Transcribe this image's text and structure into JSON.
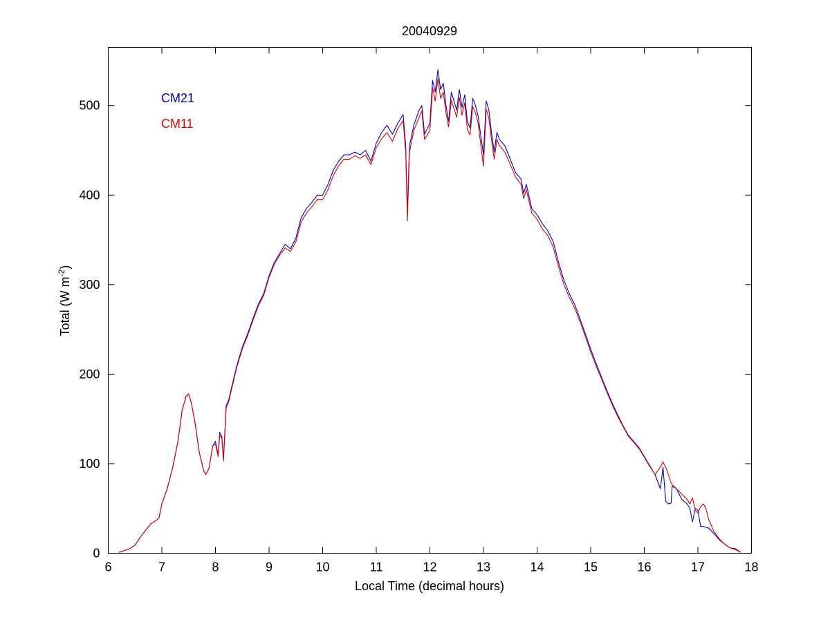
{
  "chart_data": {
    "type": "line",
    "title": "20040929",
    "xlabel": "Local Time (decimal hours)",
    "ylabel_main": "Total (W m",
    "ylabel_sup": "-2",
    "ylabel_close": ")",
    "xlim": [
      6,
      18
    ],
    "ylim": [
      0,
      565
    ],
    "xticks": [
      6,
      7,
      8,
      9,
      10,
      11,
      12,
      13,
      14,
      15,
      16,
      17,
      18
    ],
    "yticks": [
      0,
      100,
      200,
      300,
      400,
      500
    ],
    "grid": false,
    "legend_position": "top-left",
    "series": [
      {
        "name": "CM21",
        "color": "#0000bf",
        "points": [
          [
            6.2,
            1
          ],
          [
            6.3,
            3
          ],
          [
            6.4,
            5
          ],
          [
            6.5,
            9
          ],
          [
            6.6,
            18
          ],
          [
            6.7,
            26
          ],
          [
            6.8,
            33
          ],
          [
            6.9,
            37
          ],
          [
            6.95,
            40
          ],
          [
            7.0,
            55
          ],
          [
            7.1,
            72
          ],
          [
            7.2,
            95
          ],
          [
            7.3,
            125
          ],
          [
            7.38,
            160
          ],
          [
            7.45,
            175
          ],
          [
            7.5,
            178
          ],
          [
            7.55,
            168
          ],
          [
            7.62,
            145
          ],
          [
            7.7,
            112
          ],
          [
            7.78,
            92
          ],
          [
            7.82,
            88
          ],
          [
            7.88,
            95
          ],
          [
            7.95,
            120
          ],
          [
            8.0,
            125
          ],
          [
            8.05,
            110
          ],
          [
            8.08,
            135
          ],
          [
            8.12,
            130
          ],
          [
            8.15,
            105
          ],
          [
            8.2,
            165
          ],
          [
            8.25,
            172
          ],
          [
            8.3,
            185
          ],
          [
            8.4,
            210
          ],
          [
            8.5,
            230
          ],
          [
            8.6,
            245
          ],
          [
            8.7,
            262
          ],
          [
            8.8,
            278
          ],
          [
            8.9,
            290
          ],
          [
            9.0,
            310
          ],
          [
            9.1,
            325
          ],
          [
            9.2,
            335
          ],
          [
            9.3,
            345
          ],
          [
            9.4,
            340
          ],
          [
            9.5,
            352
          ],
          [
            9.6,
            375
          ],
          [
            9.7,
            385
          ],
          [
            9.8,
            392
          ],
          [
            9.9,
            400
          ],
          [
            10.0,
            400
          ],
          [
            10.1,
            412
          ],
          [
            10.2,
            428
          ],
          [
            10.3,
            438
          ],
          [
            10.4,
            445
          ],
          [
            10.5,
            445
          ],
          [
            10.6,
            448
          ],
          [
            10.7,
            445
          ],
          [
            10.8,
            450
          ],
          [
            10.9,
            438
          ],
          [
            11.0,
            458
          ],
          [
            11.1,
            470
          ],
          [
            11.2,
            478
          ],
          [
            11.3,
            468
          ],
          [
            11.4,
            480
          ],
          [
            11.5,
            490
          ],
          [
            11.55,
            455
          ],
          [
            11.58,
            380
          ],
          [
            11.62,
            455
          ],
          [
            11.7,
            478
          ],
          [
            11.8,
            495
          ],
          [
            11.85,
            500
          ],
          [
            11.9,
            468
          ],
          [
            12.0,
            480
          ],
          [
            12.05,
            528
          ],
          [
            12.1,
            515
          ],
          [
            12.15,
            540
          ],
          [
            12.2,
            518
          ],
          [
            12.25,
            525
          ],
          [
            12.3,
            500
          ],
          [
            12.35,
            482
          ],
          [
            12.4,
            515
          ],
          [
            12.5,
            495
          ],
          [
            12.55,
            518
          ],
          [
            12.6,
            498
          ],
          [
            12.65,
            512
          ],
          [
            12.7,
            482
          ],
          [
            12.75,
            475
          ],
          [
            12.8,
            508
          ],
          [
            12.85,
            500
          ],
          [
            12.9,
            488
          ],
          [
            13.0,
            445
          ],
          [
            13.05,
            505
          ],
          [
            13.1,
            495
          ],
          [
            13.15,
            470
          ],
          [
            13.2,
            448
          ],
          [
            13.25,
            470
          ],
          [
            13.3,
            462
          ],
          [
            13.4,
            455
          ],
          [
            13.5,
            440
          ],
          [
            13.6,
            425
          ],
          [
            13.7,
            418
          ],
          [
            13.75,
            402
          ],
          [
            13.8,
            412
          ],
          [
            13.9,
            385
          ],
          [
            14.0,
            378
          ],
          [
            14.1,
            368
          ],
          [
            14.2,
            360
          ],
          [
            14.3,
            348
          ],
          [
            14.4,
            325
          ],
          [
            14.5,
            305
          ],
          [
            14.6,
            290
          ],
          [
            14.7,
            278
          ],
          [
            14.8,
            262
          ],
          [
            14.9,
            245
          ],
          [
            15.0,
            228
          ],
          [
            15.1,
            212
          ],
          [
            15.2,
            197
          ],
          [
            15.3,
            182
          ],
          [
            15.4,
            168
          ],
          [
            15.5,
            155
          ],
          [
            15.6,
            143
          ],
          [
            15.7,
            132
          ],
          [
            15.8,
            125
          ],
          [
            15.9,
            118
          ],
          [
            16.0,
            108
          ],
          [
            16.1,
            98
          ],
          [
            16.2,
            88
          ],
          [
            16.3,
            72
          ],
          [
            16.35,
            96
          ],
          [
            16.4,
            58
          ],
          [
            16.45,
            55
          ],
          [
            16.5,
            56
          ],
          [
            16.52,
            75
          ],
          [
            16.6,
            72
          ],
          [
            16.7,
            60
          ],
          [
            16.8,
            55
          ],
          [
            16.85,
            50
          ],
          [
            16.9,
            35
          ],
          [
            16.95,
            50
          ],
          [
            17.0,
            48
          ],
          [
            17.05,
            30
          ],
          [
            17.1,
            30
          ],
          [
            17.2,
            28
          ],
          [
            17.3,
            22
          ],
          [
            17.4,
            15
          ],
          [
            17.5,
            10
          ],
          [
            17.6,
            6
          ],
          [
            17.7,
            5
          ],
          [
            17.8,
            1
          ]
        ]
      },
      {
        "name": "CM11",
        "color": "#e00000",
        "points": [
          [
            6.2,
            1
          ],
          [
            6.3,
            3
          ],
          [
            6.4,
            5
          ],
          [
            6.5,
            9
          ],
          [
            6.6,
            18
          ],
          [
            6.7,
            26
          ],
          [
            6.8,
            33
          ],
          [
            6.9,
            37
          ],
          [
            6.95,
            40
          ],
          [
            7.0,
            55
          ],
          [
            7.1,
            72
          ],
          [
            7.2,
            95
          ],
          [
            7.3,
            125
          ],
          [
            7.38,
            160
          ],
          [
            7.45,
            175
          ],
          [
            7.5,
            178
          ],
          [
            7.55,
            168
          ],
          [
            7.62,
            145
          ],
          [
            7.7,
            112
          ],
          [
            7.78,
            92
          ],
          [
            7.82,
            88
          ],
          [
            7.88,
            95
          ],
          [
            7.95,
            120
          ],
          [
            8.0,
            122
          ],
          [
            8.05,
            108
          ],
          [
            8.08,
            132
          ],
          [
            8.12,
            128
          ],
          [
            8.15,
            103
          ],
          [
            8.2,
            162
          ],
          [
            8.25,
            170
          ],
          [
            8.3,
            183
          ],
          [
            8.4,
            208
          ],
          [
            8.5,
            228
          ],
          [
            8.6,
            243
          ],
          [
            8.7,
            260
          ],
          [
            8.8,
            276
          ],
          [
            8.9,
            288
          ],
          [
            9.0,
            308
          ],
          [
            9.1,
            323
          ],
          [
            9.2,
            333
          ],
          [
            9.3,
            341
          ],
          [
            9.4,
            337
          ],
          [
            9.5,
            348
          ],
          [
            9.6,
            370
          ],
          [
            9.7,
            380
          ],
          [
            9.8,
            387
          ],
          [
            9.9,
            395
          ],
          [
            10.0,
            395
          ],
          [
            10.1,
            406
          ],
          [
            10.2,
            422
          ],
          [
            10.3,
            433
          ],
          [
            10.4,
            440
          ],
          [
            10.5,
            440
          ],
          [
            10.6,
            444
          ],
          [
            10.7,
            441
          ],
          [
            10.8,
            445
          ],
          [
            10.9,
            434
          ],
          [
            11.0,
            453
          ],
          [
            11.1,
            463
          ],
          [
            11.2,
            470
          ],
          [
            11.3,
            460
          ],
          [
            11.4,
            474
          ],
          [
            11.5,
            483
          ],
          [
            11.55,
            448
          ],
          [
            11.58,
            371
          ],
          [
            11.62,
            448
          ],
          [
            11.7,
            472
          ],
          [
            11.8,
            487
          ],
          [
            11.85,
            494
          ],
          [
            11.9,
            462
          ],
          [
            12.0,
            472
          ],
          [
            12.05,
            520
          ],
          [
            12.1,
            505
          ],
          [
            12.15,
            530
          ],
          [
            12.2,
            508
          ],
          [
            12.25,
            515
          ],
          [
            12.3,
            492
          ],
          [
            12.35,
            476
          ],
          [
            12.4,
            506
          ],
          [
            12.5,
            487
          ],
          [
            12.55,
            509
          ],
          [
            12.6,
            489
          ],
          [
            12.65,
            503
          ],
          [
            12.7,
            474
          ],
          [
            12.75,
            467
          ],
          [
            12.8,
            499
          ],
          [
            12.85,
            492
          ],
          [
            12.9,
            480
          ],
          [
            13.0,
            432
          ],
          [
            13.05,
            496
          ],
          [
            13.1,
            486
          ],
          [
            13.15,
            462
          ],
          [
            13.2,
            440
          ],
          [
            13.25,
            462
          ],
          [
            13.3,
            455
          ],
          [
            13.4,
            448
          ],
          [
            13.5,
            434
          ],
          [
            13.6,
            420
          ],
          [
            13.7,
            412
          ],
          [
            13.75,
            396
          ],
          [
            13.8,
            406
          ],
          [
            13.9,
            380
          ],
          [
            14.0,
            373
          ],
          [
            14.1,
            362
          ],
          [
            14.2,
            355
          ],
          [
            14.3,
            342
          ],
          [
            14.4,
            320
          ],
          [
            14.5,
            300
          ],
          [
            14.6,
            286
          ],
          [
            14.7,
            274
          ],
          [
            14.8,
            259
          ],
          [
            14.9,
            242
          ],
          [
            15.0,
            225
          ],
          [
            15.1,
            209
          ],
          [
            15.2,
            195
          ],
          [
            15.3,
            180
          ],
          [
            15.4,
            166
          ],
          [
            15.5,
            153
          ],
          [
            15.6,
            142
          ],
          [
            15.7,
            131
          ],
          [
            15.8,
            124
          ],
          [
            15.9,
            117
          ],
          [
            16.0,
            107
          ],
          [
            16.1,
            97
          ],
          [
            16.2,
            88
          ],
          [
            16.3,
            96
          ],
          [
            16.35,
            102
          ],
          [
            16.4,
            96
          ],
          [
            16.45,
            88
          ],
          [
            16.5,
            78
          ],
          [
            16.6,
            72
          ],
          [
            16.7,
            66
          ],
          [
            16.8,
            60
          ],
          [
            16.85,
            55
          ],
          [
            16.9,
            62
          ],
          [
            16.95,
            48
          ],
          [
            17.0,
            45
          ],
          [
            17.05,
            52
          ],
          [
            17.1,
            55
          ],
          [
            17.15,
            50
          ],
          [
            17.2,
            38
          ],
          [
            17.3,
            24
          ],
          [
            17.4,
            16
          ],
          [
            17.5,
            10
          ],
          [
            17.6,
            6
          ],
          [
            17.7,
            4
          ],
          [
            17.8,
            1
          ]
        ]
      }
    ]
  }
}
